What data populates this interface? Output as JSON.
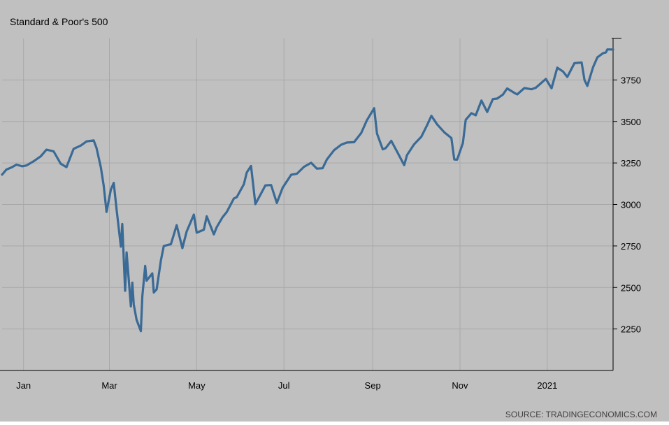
{
  "colors": {
    "background": "#c0c0c0",
    "series_line": "#3a6a96",
    "grid": "#a8a8a8",
    "axis": "#000000",
    "text": "#000000",
    "source_text": "#404040"
  },
  "chart_data": {
    "type": "line",
    "title": "Standard & Poor's 500",
    "source": "SOURCE: TRADINGECONOMICS.COM",
    "xlabel": "",
    "ylabel": "",
    "y_axis_side": "right",
    "grid": true,
    "legend": "none",
    "ylim": [
      2000,
      4000
    ],
    "y_ticks": [
      2250,
      2500,
      2750,
      3000,
      3250,
      3500,
      3750
    ],
    "x_ticks": [
      {
        "label": "Jan",
        "x": "2020-01-01"
      },
      {
        "label": "Mar",
        "x": "2020-03-01"
      },
      {
        "label": "May",
        "x": "2020-05-01"
      },
      {
        "label": "Jul",
        "x": "2020-07-01"
      },
      {
        "label": "Sep",
        "x": "2020-09-01"
      },
      {
        "label": "Nov",
        "x": "2020-11-01"
      },
      {
        "label": "2021",
        "x": "2021-01-01"
      }
    ],
    "xlim": [
      "2019-12-17",
      "2021-02-16"
    ],
    "series": [
      {
        "points": [
          [
            "2019-12-17",
            3180
          ],
          [
            "2019-12-20",
            3210
          ],
          [
            "2019-12-24",
            3225
          ],
          [
            "2019-12-27",
            3240
          ],
          [
            "2019-12-31",
            3230
          ],
          [
            "2020-01-03",
            3235
          ],
          [
            "2020-01-08",
            3260
          ],
          [
            "2020-01-13",
            3290
          ],
          [
            "2020-01-17",
            3330
          ],
          [
            "2020-01-22",
            3320
          ],
          [
            "2020-01-27",
            3245
          ],
          [
            "2020-01-31",
            3225
          ],
          [
            "2020-02-05",
            3335
          ],
          [
            "2020-02-10",
            3355
          ],
          [
            "2020-02-14",
            3380
          ],
          [
            "2020-02-19",
            3386
          ],
          [
            "2020-02-21",
            3340
          ],
          [
            "2020-02-24",
            3225
          ],
          [
            "2020-02-26",
            3115
          ],
          [
            "2020-02-28",
            2955
          ],
          [
            "2020-03-02",
            3090
          ],
          [
            "2020-03-04",
            3130
          ],
          [
            "2020-03-06",
            2972
          ],
          [
            "2020-03-09",
            2746
          ],
          [
            "2020-03-10",
            2882
          ],
          [
            "2020-03-12",
            2480
          ],
          [
            "2020-03-13",
            2711
          ],
          [
            "2020-03-16",
            2386
          ],
          [
            "2020-03-17",
            2529
          ],
          [
            "2020-03-18",
            2398
          ],
          [
            "2020-03-20",
            2305
          ],
          [
            "2020-03-23",
            2237
          ],
          [
            "2020-03-24",
            2447
          ],
          [
            "2020-03-26",
            2630
          ],
          [
            "2020-03-27",
            2541
          ],
          [
            "2020-03-31",
            2585
          ],
          [
            "2020-04-01",
            2470
          ],
          [
            "2020-04-03",
            2489
          ],
          [
            "2020-04-06",
            2664
          ],
          [
            "2020-04-08",
            2750
          ],
          [
            "2020-04-13",
            2761
          ],
          [
            "2020-04-17",
            2875
          ],
          [
            "2020-04-21",
            2737
          ],
          [
            "2020-04-24",
            2837
          ],
          [
            "2020-04-29",
            2939
          ],
          [
            "2020-05-01",
            2830
          ],
          [
            "2020-05-06",
            2848
          ],
          [
            "2020-05-08",
            2929
          ],
          [
            "2020-05-13",
            2820
          ],
          [
            "2020-05-15",
            2863
          ],
          [
            "2020-05-19",
            2922
          ],
          [
            "2020-05-22",
            2955
          ],
          [
            "2020-05-27",
            3036
          ],
          [
            "2020-05-29",
            3044
          ],
          [
            "2020-06-03",
            3122
          ],
          [
            "2020-06-05",
            3193
          ],
          [
            "2020-06-08",
            3232
          ],
          [
            "2020-06-11",
            3002
          ],
          [
            "2020-06-15",
            3066
          ],
          [
            "2020-06-18",
            3115
          ],
          [
            "2020-06-22",
            3117
          ],
          [
            "2020-06-26",
            3009
          ],
          [
            "2020-06-30",
            3100
          ],
          [
            "2020-07-06",
            3179
          ],
          [
            "2020-07-10",
            3185
          ],
          [
            "2020-07-15",
            3227
          ],
          [
            "2020-07-20",
            3251
          ],
          [
            "2020-07-24",
            3216
          ],
          [
            "2020-07-28",
            3218
          ],
          [
            "2020-07-31",
            3271
          ],
          [
            "2020-08-05",
            3327
          ],
          [
            "2020-08-10",
            3360
          ],
          [
            "2020-08-14",
            3373
          ],
          [
            "2020-08-19",
            3375
          ],
          [
            "2020-08-24",
            3431
          ],
          [
            "2020-08-28",
            3508
          ],
          [
            "2020-09-02",
            3580
          ],
          [
            "2020-09-04",
            3427
          ],
          [
            "2020-09-08",
            3332
          ],
          [
            "2020-09-10",
            3339
          ],
          [
            "2020-09-14",
            3383
          ],
          [
            "2020-09-18",
            3319
          ],
          [
            "2020-09-23",
            3237
          ],
          [
            "2020-09-25",
            3298
          ],
          [
            "2020-09-30",
            3363
          ],
          [
            "2020-10-05",
            3408
          ],
          [
            "2020-10-09",
            3477
          ],
          [
            "2020-10-12",
            3534
          ],
          [
            "2020-10-16",
            3483
          ],
          [
            "2020-10-21",
            3435
          ],
          [
            "2020-10-26",
            3400
          ],
          [
            "2020-10-28",
            3271
          ],
          [
            "2020-10-30",
            3270
          ],
          [
            "2020-11-03",
            3369
          ],
          [
            "2020-11-05",
            3510
          ],
          [
            "2020-11-09",
            3550
          ],
          [
            "2020-11-12",
            3537
          ],
          [
            "2020-11-16",
            3626
          ],
          [
            "2020-11-20",
            3557
          ],
          [
            "2020-11-24",
            3635
          ],
          [
            "2020-11-27",
            3638
          ],
          [
            "2020-12-01",
            3662
          ],
          [
            "2020-12-04",
            3699
          ],
          [
            "2020-12-09",
            3672
          ],
          [
            "2020-12-11",
            3663
          ],
          [
            "2020-12-16",
            3701
          ],
          [
            "2020-12-21",
            3694
          ],
          [
            "2020-12-24",
            3703
          ],
          [
            "2020-12-31",
            3756
          ],
          [
            "2021-01-04",
            3700
          ],
          [
            "2021-01-08",
            3824
          ],
          [
            "2021-01-12",
            3801
          ],
          [
            "2021-01-15",
            3768
          ],
          [
            "2021-01-20",
            3851
          ],
          [
            "2021-01-25",
            3855
          ],
          [
            "2021-01-27",
            3750
          ],
          [
            "2021-01-29",
            3714
          ],
          [
            "2021-02-02",
            3826
          ],
          [
            "2021-02-05",
            3886
          ],
          [
            "2021-02-09",
            3911
          ],
          [
            "2021-02-11",
            3916
          ],
          [
            "2021-02-12",
            3934
          ],
          [
            "2021-02-16",
            3933
          ]
        ]
      }
    ]
  }
}
